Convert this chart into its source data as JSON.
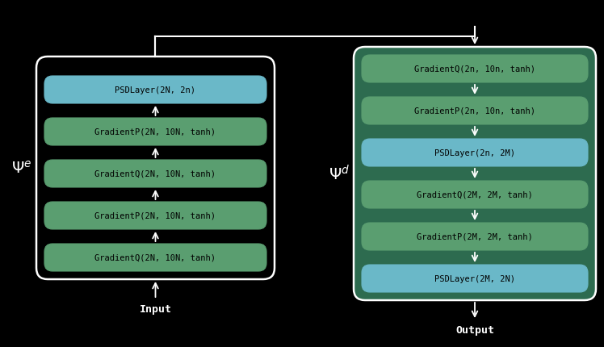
{
  "background_color": "#000000",
  "green_color": "#5a9e70",
  "green_color_dark": "#3d7a56",
  "blue_color": "#6ab8c8",
  "box_edge_color": "#ffffff",
  "text_color": "#000000",
  "label_color": "#ffffff",
  "dec_box_bg": "#2d6b4f",
  "encoder_label": "$\\Psi^e$",
  "decoder_label": "$\\Psi^d$",
  "encoder_layers": [
    {
      "text": "GradientQ(2N, 10N, tanh)",
      "type": "green"
    },
    {
      "text": "GradientP(2N, 10N, tanh)",
      "type": "green"
    },
    {
      "text": "GradientQ(2N, 10N, tanh)",
      "type": "green"
    },
    {
      "text": "GradientP(2N, 10N, tanh)",
      "type": "green"
    },
    {
      "text": "PSDLayer(2N, 2n)",
      "type": "blue"
    }
  ],
  "decoder_layers": [
    {
      "text": "GradientQ(2n, 10n, tanh)",
      "type": "green"
    },
    {
      "text": "GradientP(2n, 10n, tanh)",
      "type": "green"
    },
    {
      "text": "PSDLayer(2n, 2M)",
      "type": "blue"
    },
    {
      "text": "GradientQ(2M, 2M, tanh)",
      "type": "green"
    },
    {
      "text": "GradientP(2M, 2M, tanh)",
      "type": "green"
    },
    {
      "text": "PSDLayer(2M, 2N)",
      "type": "blue"
    }
  ],
  "input_label": "Input",
  "output_label": "Output",
  "fig_width": 7.48,
  "fig_height": 4.31
}
